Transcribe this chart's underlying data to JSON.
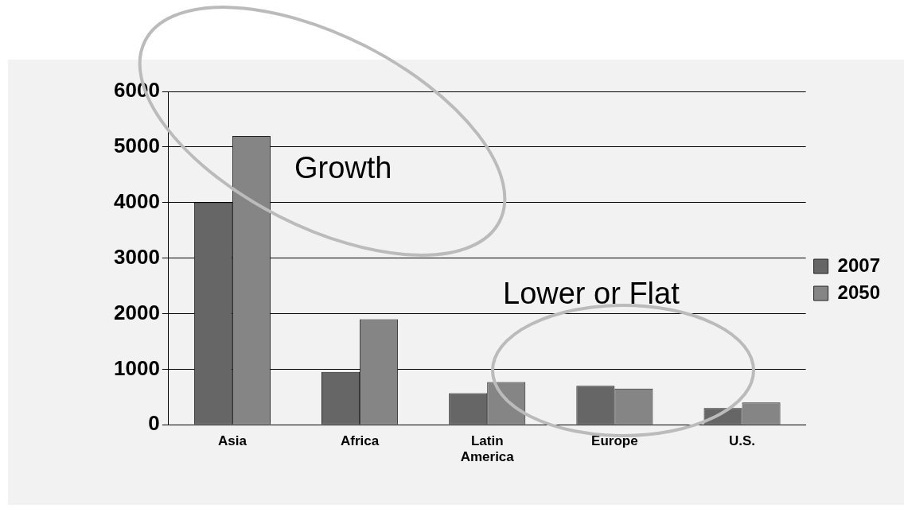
{
  "chart_data": {
    "type": "bar",
    "categories": [
      "Asia",
      "Africa",
      "Latin America",
      "Europe",
      "U.S."
    ],
    "series": [
      {
        "name": "2007",
        "color": "#666666",
        "values": [
          4000,
          950,
          570,
          700,
          300
        ]
      },
      {
        "name": "2050",
        "color": "#858585",
        "values": [
          5200,
          1900,
          770,
          650,
          400
        ]
      }
    ],
    "ylim": [
      0,
      6000
    ],
    "yticks": [
      0,
      1000,
      2000,
      3000,
      4000,
      5000,
      6000
    ],
    "grid": "y",
    "legend": "right",
    "annotations": [
      "Growth",
      "Lower or Flat"
    ]
  }
}
